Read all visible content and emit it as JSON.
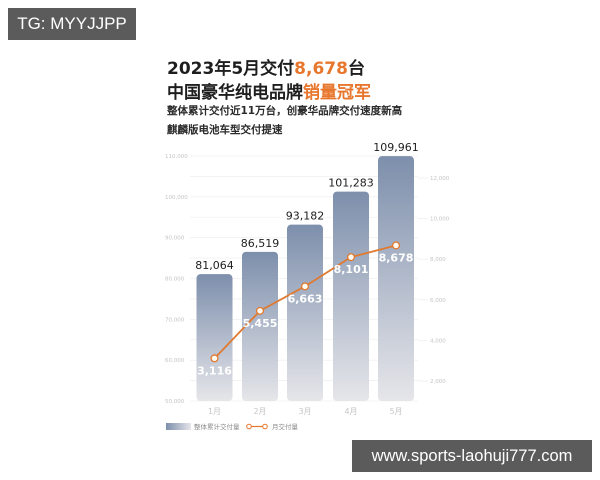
{
  "watermarks": {
    "top_left": "TG: MYYJJPP",
    "bottom_right": "www.sports-laohuji777.com"
  },
  "header": {
    "line1_prefix": "2023年5月交付",
    "line1_highlight": "8,678",
    "line1_suffix": "台",
    "line2_prefix": "中国豪华纯电品牌",
    "line2_highlight": "销量冠军",
    "subtitle1": "整体累计交付近11万台，创豪华品牌交付速度新高",
    "subtitle2": "麒麟版电池车型交付提速"
  },
  "colors": {
    "accent": "#e8772e",
    "bar_top": "#7d8fac",
    "bar_bottom": "#e4e4e8",
    "text": "#1e1e1e"
  },
  "chart_data": {
    "type": "bar",
    "title": "2023年5月交付8,678台 中国豪华纯电品牌销量冠军",
    "categories": [
      "1月",
      "2月",
      "3月",
      "4月",
      "5月"
    ],
    "series": [
      {
        "name": "整体累计交付量",
        "type": "bar",
        "axis": "left",
        "values": [
          81064,
          86519,
          93182,
          101283,
          109961
        ],
        "labels": [
          "81,064",
          "86,519",
          "93,182",
          "101,283",
          "109,961"
        ]
      },
      {
        "name": "月交付量",
        "type": "line",
        "axis": "right",
        "values": [
          3116,
          5455,
          6663,
          8101,
          8678
        ],
        "labels": [
          "3,116",
          "5,455",
          "6,663",
          "8,101",
          "8,678"
        ]
      }
    ],
    "left_axis": {
      "ylim": [
        50000,
        110000
      ],
      "ticks": [
        "110,000",
        "100,000",
        "90,000",
        "80,000",
        "70,000",
        "60,000",
        "50,000"
      ]
    },
    "right_axis": {
      "ylim": [
        0,
        12000
      ],
      "ticks": [
        "12,000",
        "10,000",
        "8,000",
        "6,000",
        "4,000",
        "2,000"
      ]
    },
    "grid": true,
    "legend_position": "bottom-left",
    "legend": [
      "整体累计交付量",
      "月交付量"
    ]
  }
}
